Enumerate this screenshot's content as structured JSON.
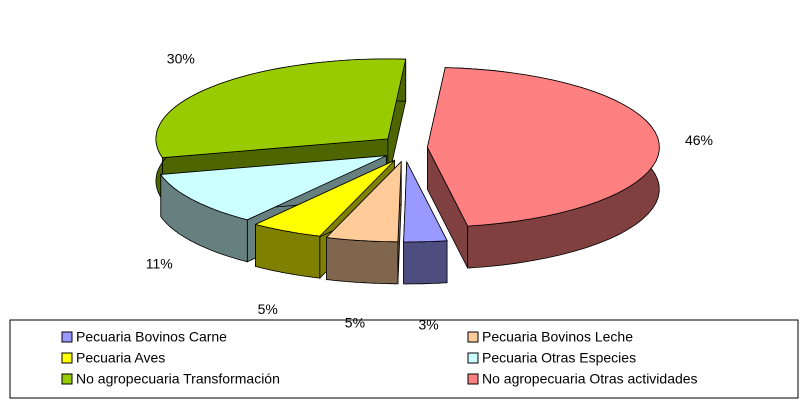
{
  "chart_data": {
    "type": "pie3d",
    "categories": [
      "Pecuaria Bovinos Carne",
      "Pecuaria Bovinos Leche",
      "Pecuaria Aves",
      "Pecuaria Otras Especies",
      "No agropecuaria Transformación",
      "No agropecuaria Otras actividades"
    ],
    "values": [
      3,
      5,
      5,
      11,
      30,
      46
    ],
    "value_labels": [
      "3%",
      "5%",
      "5%",
      "11%",
      "30%",
      "46%"
    ],
    "colors": [
      "#9999ff",
      "#ffcc99",
      "#ffff00",
      "#ccffff",
      "#99cc00",
      "#ff8080"
    ],
    "legend": "bottom"
  }
}
